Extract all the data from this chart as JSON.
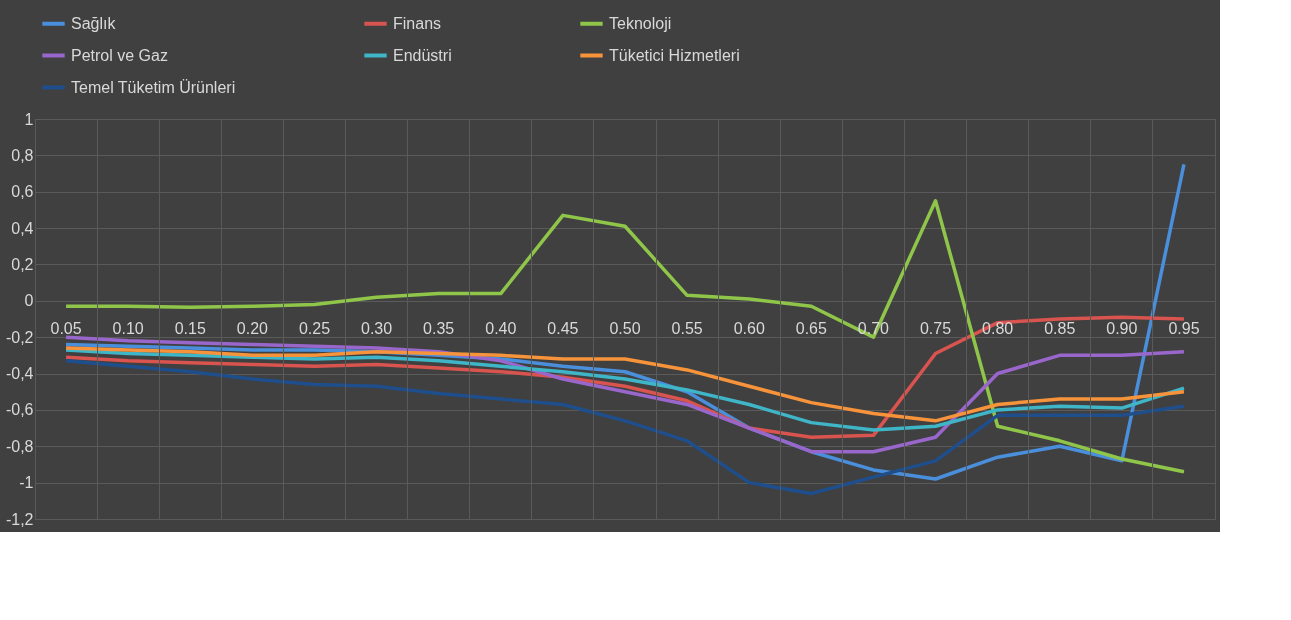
{
  "chart_data": {
    "type": "line",
    "categories": [
      "0.05",
      "0.10",
      "0.15",
      "0.20",
      "0.25",
      "0.30",
      "0.35",
      "0.40",
      "0.45",
      "0.50",
      "0.55",
      "0.60",
      "0.65",
      "0.70",
      "0.75",
      "0.80",
      "0.85",
      "0.90",
      "0.95"
    ],
    "series": [
      {
        "name": "Sağlık",
        "color": "#4a8fdc",
        "values": [
          -0.24,
          -0.25,
          -0.26,
          -0.27,
          -0.27,
          -0.28,
          -0.3,
          -0.32,
          -0.36,
          -0.39,
          -0.5,
          -0.7,
          -0.83,
          -0.93,
          -0.98,
          -0.86,
          -0.8,
          -0.88,
          0.75
        ]
      },
      {
        "name": "Finans",
        "color": "#d9534f",
        "values": [
          -0.31,
          -0.33,
          -0.34,
          -0.35,
          -0.36,
          -0.35,
          -0.37,
          -0.39,
          -0.42,
          -0.47,
          -0.55,
          -0.7,
          -0.75,
          -0.74,
          -0.29,
          -0.12,
          -0.1,
          -0.09,
          -0.1
        ]
      },
      {
        "name": "Teknoloji",
        "color": "#8fc64a",
        "values": [
          -0.03,
          -0.03,
          -0.035,
          -0.03,
          -0.02,
          0.02,
          0.04,
          0.04,
          0.47,
          0.41,
          0.03,
          0.01,
          -0.03,
          -0.2,
          0.55,
          -0.69,
          -0.77,
          -0.87,
          -0.94
        ]
      },
      {
        "name": "Petrol ve Gaz",
        "color": "#9966cc",
        "values": [
          -0.2,
          -0.22,
          -0.23,
          -0.24,
          -0.25,
          -0.26,
          -0.28,
          -0.33,
          -0.43,
          -0.5,
          -0.57,
          -0.7,
          -0.83,
          -0.83,
          -0.75,
          -0.4,
          -0.3,
          -0.3,
          -0.28
        ]
      },
      {
        "name": "Endüstri",
        "color": "#3fb5c8",
        "values": [
          -0.27,
          -0.29,
          -0.3,
          -0.31,
          -0.32,
          -0.31,
          -0.33,
          -0.36,
          -0.39,
          -0.43,
          -0.49,
          -0.57,
          -0.67,
          -0.71,
          -0.69,
          -0.6,
          -0.58,
          -0.59,
          -0.48
        ]
      },
      {
        "name": "Tüketici Hizmetleri",
        "color": "#f7933a",
        "values": [
          -0.26,
          -0.27,
          -0.28,
          -0.3,
          -0.3,
          -0.28,
          -0.29,
          -0.3,
          -0.32,
          -0.32,
          -0.38,
          -0.47,
          -0.56,
          -0.62,
          -0.66,
          -0.57,
          -0.54,
          -0.54,
          -0.5
        ]
      },
      {
        "name": "Temel Tüketim Ürünleri",
        "color": "#1f4e8c",
        "values": [
          -0.33,
          -0.36,
          -0.39,
          -0.43,
          -0.46,
          -0.47,
          -0.51,
          -0.54,
          -0.57,
          -0.66,
          -0.77,
          -1.0,
          -1.06,
          -0.97,
          -0.88,
          -0.63,
          -0.63,
          -0.63,
          -0.58
        ]
      }
    ],
    "ylim": [
      -1.2,
      1
    ],
    "yticks": [
      {
        "value": -1.2,
        "label": "-1,2"
      },
      -1,
      {
        "value": -0.8,
        "label": "-0,8"
      },
      {
        "value": -0.6,
        "label": "-0,6"
      },
      {
        "value": -0.4,
        "label": "-0,4"
      },
      {
        "value": -0.2,
        "label": "-0,2"
      },
      0,
      {
        "value": 0.2,
        "label": "0,2"
      },
      {
        "value": 0.4,
        "label": "0,4"
      },
      {
        "value": 0.6,
        "label": "0,6"
      },
      {
        "value": 0.8,
        "label": "0,8"
      },
      1
    ],
    "grid": true,
    "legend": "top",
    "line_style": "solid",
    "marker": "none"
  }
}
